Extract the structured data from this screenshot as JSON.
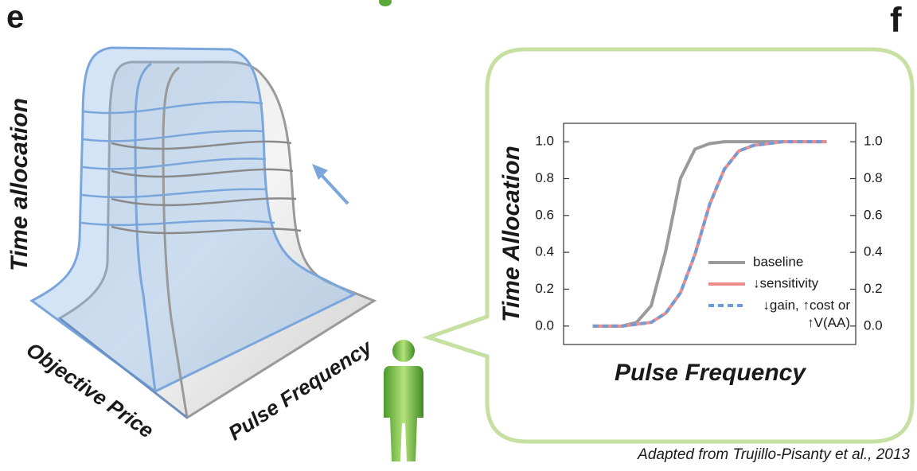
{
  "panel_labels": {
    "left": "e",
    "right": "f"
  },
  "illustration": {
    "z_label": "Time allocation",
    "x_label": "Objective Price",
    "y_label": "Pulse Frequency"
  },
  "chart_data": {
    "type": "line",
    "x_label": "Pulse Frequency",
    "y_label": "Time Allocation",
    "x": [
      1,
      1.5,
      2,
      2.5,
      3,
      3.5,
      4,
      4.5,
      5,
      5.5,
      6,
      6.5,
      7,
      7.5,
      8,
      8.5,
      9
    ],
    "xlim": [
      0,
      10
    ],
    "ylim": [
      -0.1,
      1.1
    ],
    "yticks": [
      {
        "value": 0,
        "label": "0.0"
      },
      {
        "value": 0.2,
        "label": "0.2"
      },
      {
        "value": 0.4,
        "label": "0.4"
      },
      {
        "value": 0.6,
        "label": "0.6"
      },
      {
        "value": 0.8,
        "label": "0.8"
      },
      {
        "value": 1,
        "label": "1.0"
      }
    ],
    "y2lim": [
      -0.1,
      1.1
    ],
    "y2ticks": [
      {
        "value": 0,
        "label": "0.0"
      },
      {
        "value": 0.2,
        "label": "0.2"
      },
      {
        "value": 0.4,
        "label": "0.4"
      },
      {
        "value": 0.6,
        "label": "0.6"
      },
      {
        "value": 0.8,
        "label": "0.8"
      },
      {
        "value": 1,
        "label": "1.0"
      }
    ],
    "series": [
      {
        "name": "baseline",
        "color": "#9a9a9a",
        "dashed": false,
        "values": [
          0,
          0,
          0,
          0.02,
          0.11,
          0.41,
          0.8,
          0.96,
          0.99,
          1,
          1,
          1,
          1,
          1,
          1,
          1,
          1
        ]
      },
      {
        "name": "↓sensitivity",
        "color": "#f08c8c",
        "dashed": false,
        "values": [
          0,
          0,
          0,
          0.01,
          0.02,
          0.07,
          0.18,
          0.39,
          0.66,
          0.85,
          0.95,
          0.98,
          0.99,
          1,
          1,
          1,
          1
        ]
      },
      {
        "name": "↓gain, ↑cost or ↑V(AA)",
        "color": "#6f9bd6",
        "dashed": true,
        "values": [
          0,
          0,
          0,
          0.01,
          0.02,
          0.07,
          0.18,
          0.39,
          0.66,
          0.85,
          0.95,
          0.98,
          0.99,
          1,
          1,
          1,
          1
        ]
      }
    ]
  },
  "caption": "Adapted from Trujillo-Pisanty et al., 2013"
}
